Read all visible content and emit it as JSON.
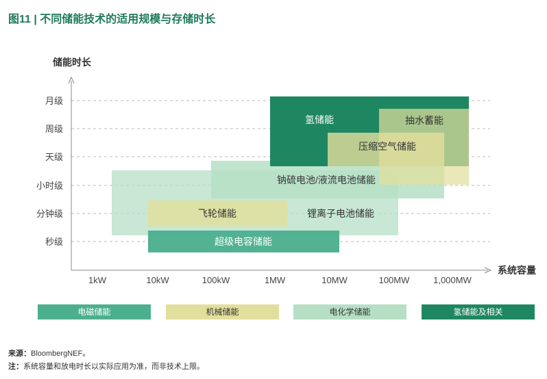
{
  "figure_title": "图11 | 不同储能技术的适用规模与存储时长",
  "notes": {
    "source_label": "来源：",
    "source_text": "BloombergNEF。",
    "note_label": "注：",
    "note_text": "系统容量和放电时长以实际应用为准，而非技术上限。"
  },
  "chart_data": {
    "type": "range-rectangles",
    "ylabel": "储能时长",
    "xlabel": "系统容量",
    "x_ticks": [
      "1kW",
      "10kW",
      "100kW",
      "1MW",
      "10MW",
      "100MW",
      "1,000MW"
    ],
    "y_ticks": [
      "秒级",
      "分钟级",
      "小时级",
      "天级",
      "周级",
      "月级"
    ],
    "categories_legend": [
      {
        "name": "电磁储能",
        "color": "#4caf8e"
      },
      {
        "name": "机械储能",
        "color": "#e2df9c"
      },
      {
        "name": "电化学储能",
        "color": "#b6dfc6"
      },
      {
        "name": "氢储能及相关",
        "color": "#1e8762"
      }
    ],
    "technologies": [
      {
        "name": "锂离子电池储能",
        "category": "电化学储能",
        "x_range": [
          "1kW",
          "100MW"
        ],
        "y_range": [
          "秒级",
          "小时级"
        ]
      },
      {
        "name": "钠硫电池/液流电池储能",
        "category": "电化学储能",
        "x_range": [
          "100kW",
          "1,000MW"
        ],
        "y_range": [
          "小时级",
          "天级"
        ]
      },
      {
        "name": "氢储能",
        "category": "氢储能及相关",
        "x_range": [
          "1MW",
          "1,000MW+"
        ],
        "y_range": [
          "天级",
          "月级"
        ]
      },
      {
        "name": "抽水蓄能",
        "category": "机械储能",
        "x_range": [
          "100MW",
          "1,000MW+"
        ],
        "y_range": [
          "小时级",
          "周级"
        ]
      },
      {
        "name": "压缩空气储能",
        "category": "机械储能",
        "x_range": [
          "10MW",
          "1,000MW"
        ],
        "y_range": [
          "小时级",
          "周级"
        ]
      },
      {
        "name": "飞轮储能",
        "category": "机械储能",
        "x_range": [
          "10kW",
          "1MW"
        ],
        "y_range": [
          "分钟级",
          "分钟级"
        ]
      },
      {
        "name": "超级电容储能",
        "category": "电磁储能",
        "x_range": [
          "10kW",
          "10MW"
        ],
        "y_range": [
          "秒级",
          "秒级"
        ]
      }
    ]
  }
}
